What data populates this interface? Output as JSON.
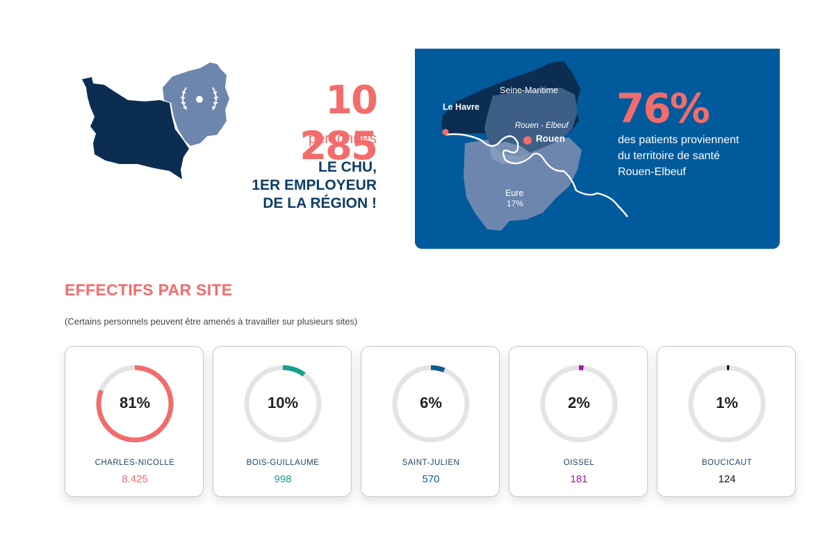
{
  "hero": {
    "count": "10 285",
    "unit": "personnes",
    "claim_lines": [
      "LE CHU,",
      "1ER EMPLOYEUR",
      "DE LA RÉGION !"
    ]
  },
  "patients": {
    "percent": "76%",
    "text_lines": [
      "des patients proviennent",
      "du territoire de santé",
      "Rouen-Elbeuf"
    ],
    "map_labels": {
      "seine_maritime": "Seine-Maritime",
      "le_havre": "Le Havre",
      "rouen_elbeuf": "Rouen - Elbeuf",
      "rouen": "Rouen",
      "eure": "Eure",
      "eure_pct": "17%"
    }
  },
  "section": {
    "title": "EFFECTIFS PAR SITE",
    "note": "(Certains personnels peuvent être amenés à travailler sur plusieurs sites)"
  },
  "sites": [
    {
      "name": "CHARLES-NICOLLE",
      "percent_label": "81%",
      "share": 0.81,
      "count": "8.425",
      "color": "#f36c6c"
    },
    {
      "name": "BOIS-GUILLAUME",
      "percent_label": "10%",
      "share": 0.1,
      "count": "998",
      "color": "#17a08f"
    },
    {
      "name": "SAINT-JULIEN",
      "percent_label": "6%",
      "share": 0.06,
      "count": "570",
      "color": "#0d5a8f"
    },
    {
      "name": "OISSEL",
      "percent_label": "2%",
      "share": 0.02,
      "count": "181",
      "color": "#9b1aa8"
    },
    {
      "name": "BOUCICAUT",
      "percent_label": "1%",
      "share": 0.01,
      "count": "124",
      "color": "#111111"
    }
  ],
  "colors": {
    "accent": "#f36c6c",
    "navy": "#0d3d64",
    "card_blue": "#005a9c",
    "track": "#e4e4e4"
  }
}
